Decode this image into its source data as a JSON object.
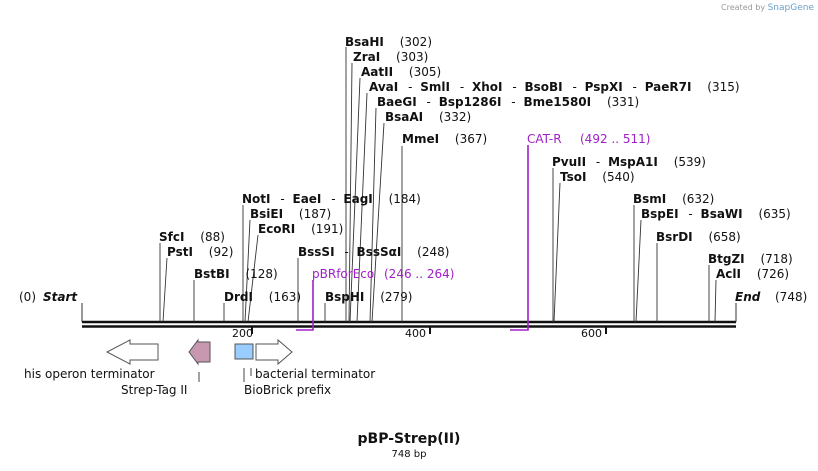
{
  "credit": {
    "prefix": "Created by",
    "brand": "SnapGene"
  },
  "map": {
    "title": "pBP-Strep(II)",
    "length_label": "748 bp",
    "total_bp": 748,
    "start": {
      "pos": "(0)",
      "label": "Start"
    },
    "end": {
      "label": "End",
      "pos": "(748)"
    },
    "ticks": [
      {
        "bp": 200,
        "label": "200"
      },
      {
        "bp": 400,
        "label": "400"
      },
      {
        "bp": 600,
        "label": "600"
      }
    ]
  },
  "sites": [
    {
      "id": "bsahi",
      "bp": 302,
      "parts": [
        "BsaHI"
      ],
      "pos": "(302)"
    },
    {
      "id": "zrai",
      "bp": 303,
      "parts": [
        "ZraI"
      ],
      "pos": "(303)"
    },
    {
      "id": "aatii",
      "bp": 305,
      "parts": [
        "AatII"
      ],
      "pos": "(305)"
    },
    {
      "id": "avai",
      "bp": 315,
      "parts": [
        "AvaI",
        "SmlI",
        "XhoI",
        "BsoBI",
        "PspXI",
        "PaeR7I"
      ],
      "pos": "(315)"
    },
    {
      "id": "baegi",
      "bp": 331,
      "parts": [
        "BaeGI",
        "Bsp1286I",
        "Bme1580I"
      ],
      "pos": "(331)"
    },
    {
      "id": "bsaai",
      "bp": 332,
      "parts": [
        "BsaAI"
      ],
      "pos": "(332)"
    },
    {
      "id": "mmei",
      "bp": 367,
      "parts": [
        "MmeI"
      ],
      "pos": "(367)"
    },
    {
      "id": "pvuii",
      "bp": 539,
      "parts": [
        "PvuII",
        "MspA1I"
      ],
      "pos": "(539)"
    },
    {
      "id": "tsoi",
      "bp": 540,
      "parts": [
        "TsoI"
      ],
      "pos": "(540)"
    },
    {
      "id": "noti",
      "bp": 184,
      "parts": [
        "NotI",
        "EaeI",
        "EagI"
      ],
      "pos": "(184)"
    },
    {
      "id": "bsiei",
      "bp": 187,
      "parts": [
        "BsiEI"
      ],
      "pos": "(187)"
    },
    {
      "id": "ecori",
      "bp": 191,
      "parts": [
        "EcoRI"
      ],
      "pos": "(191)"
    },
    {
      "id": "bsmi",
      "bp": 632,
      "parts": [
        "BsmI"
      ],
      "pos": "(632)"
    },
    {
      "id": "bspei",
      "bp": 635,
      "parts": [
        "BspEI",
        "BsaWI"
      ],
      "pos": "(635)"
    },
    {
      "id": "bsrdi",
      "bp": 658,
      "parts": [
        "BsrDI"
      ],
      "pos": "(658)"
    },
    {
      "id": "sfci",
      "bp": 88,
      "parts": [
        "SfcI"
      ],
      "pos": "(88)"
    },
    {
      "id": "psti",
      "bp": 92,
      "parts": [
        "PstI"
      ],
      "pos": "(92)"
    },
    {
      "id": "bssSI",
      "bp": 248,
      "parts": [
        "BssSI",
        "BssSαI"
      ],
      "pos": "(248)"
    },
    {
      "id": "bstbi",
      "bp": 128,
      "parts": [
        "BstBI"
      ],
      "pos": "(128)"
    },
    {
      "id": "btgzi",
      "bp": 718,
      "parts": [
        "BtgZI"
      ],
      "pos": "(718)"
    },
    {
      "id": "acli",
      "bp": 726,
      "parts": [
        "AclI"
      ],
      "pos": "(726)"
    },
    {
      "id": "drdi",
      "bp": 163,
      "parts": [
        "DrdI"
      ],
      "pos": "(163)"
    },
    {
      "id": "bsphi",
      "bp": 279,
      "parts": [
        "BspHI"
      ],
      "pos": "(279)"
    }
  ],
  "primers": [
    {
      "id": "pbrforeco",
      "name": "pBRforEco",
      "range": "(246 .. 264)"
    },
    {
      "id": "catr",
      "name": "CAT-R",
      "range": "(492 .. 511)"
    }
  ],
  "features": [
    {
      "id": "his-operon-terminator",
      "label": "his operon terminator",
      "type": "terminator",
      "color": "#ffffff"
    },
    {
      "id": "strep-tag-ii",
      "label": "Strep-Tag II",
      "type": "tag",
      "color": "#c898b0"
    },
    {
      "id": "biobrick-prefix",
      "label": "BioBrick prefix",
      "type": "misc",
      "color": "#99ccff"
    },
    {
      "id": "bacterial-terminator",
      "label": "bacterial terminator",
      "type": "terminator",
      "color": "#ffffff"
    }
  ]
}
